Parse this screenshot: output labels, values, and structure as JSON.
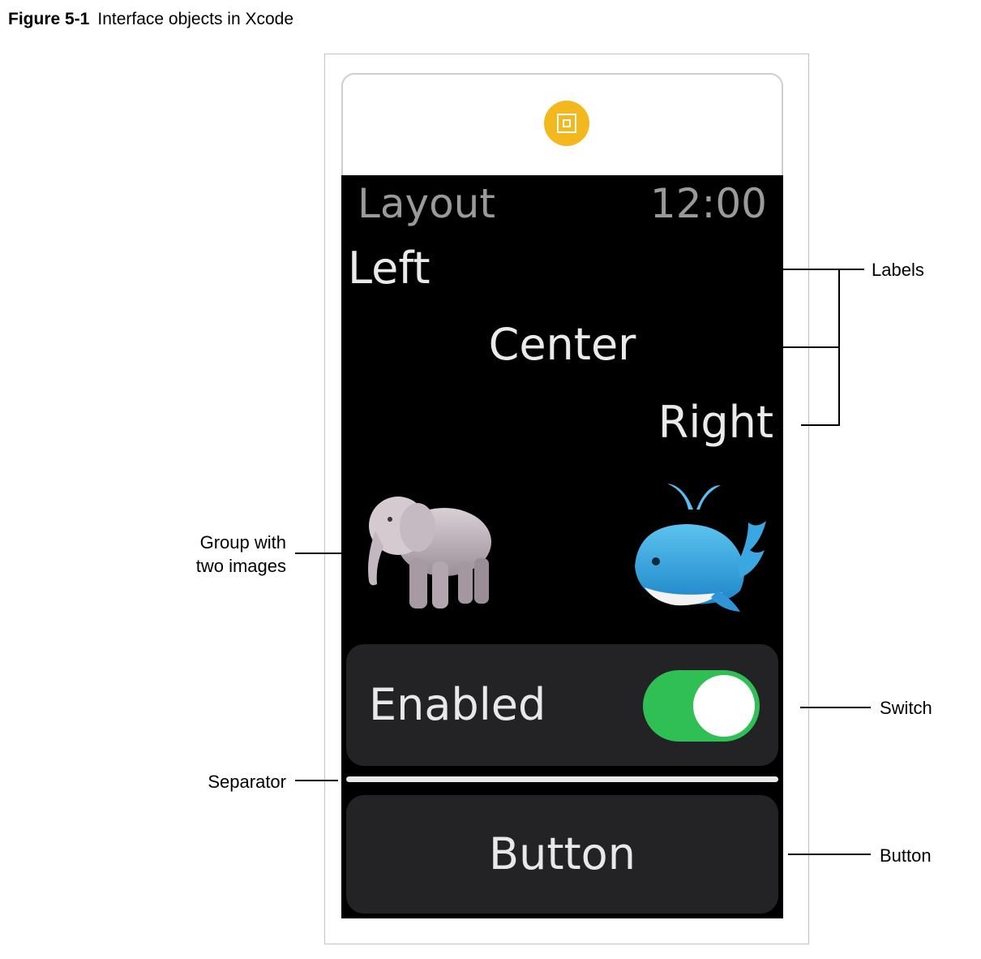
{
  "figure": {
    "number": "Figure 5-1",
    "title": "Interface objects in Xcode"
  },
  "watch": {
    "title": "Layout",
    "time": "12:00",
    "labels": {
      "left": "Left",
      "center": "Center",
      "right": "Right"
    },
    "images": [
      "elephant",
      "whale"
    ],
    "switch": {
      "label": "Enabled",
      "on": true,
      "color": "#2fbf55"
    },
    "button_label": "Button"
  },
  "callouts": {
    "labels": "Labels",
    "group_line1": "Group with",
    "group_line2": "two images",
    "switch": "Switch",
    "separator": "Separator",
    "button": "Button"
  },
  "colors": {
    "scene_badge": "#f3b81e",
    "screen_background": "#000000",
    "row_background": "#232325"
  }
}
